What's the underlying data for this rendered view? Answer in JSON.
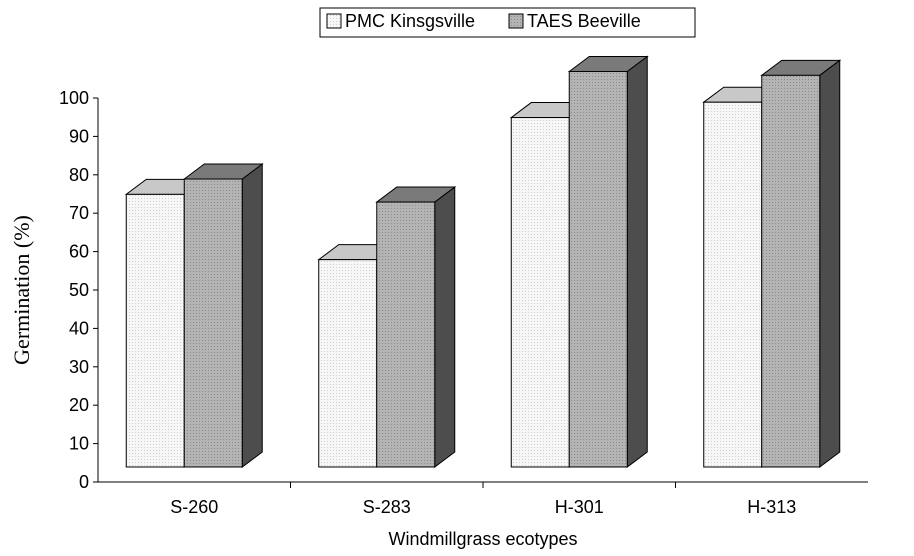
{
  "chart_data": {
    "type": "bar",
    "style": "3d-clustered",
    "categories": [
      "S-260",
      "S-283",
      "H-301",
      "H-313"
    ],
    "series": [
      {
        "name": "PMC Kinsgsville",
        "values": [
          71,
          54,
          91,
          95
        ],
        "color": "#f2f2f2",
        "side_color": "#bdbdbd",
        "top_color": "#c8c8c8"
      },
      {
        "name": "TAES Beeville",
        "values": [
          75,
          69,
          103,
          102
        ],
        "color": "#a9a9a9",
        "side_color": "#4d4d4d",
        "top_color": "#7a7a7a"
      }
    ],
    "xlabel": "Windmillgrass ecotypes",
    "ylabel": "Germination (%)",
    "yticks": [
      0,
      10,
      20,
      30,
      40,
      50,
      60,
      70,
      80,
      90,
      100
    ],
    "ylim": [
      0,
      100
    ],
    "grid": false,
    "legend_position": "top"
  }
}
